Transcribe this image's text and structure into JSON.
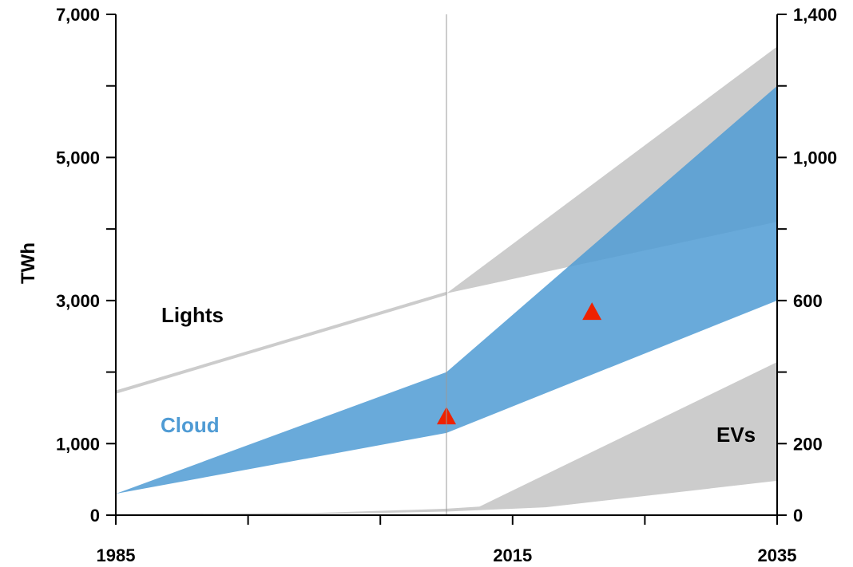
{
  "chart_data": {
    "type": "area",
    "title": "",
    "ylabel": "TWh",
    "y_left": {
      "range": [
        0,
        7000
      ],
      "ticks": [
        0,
        1000,
        2000,
        3000,
        4000,
        5000,
        6000,
        7000
      ],
      "labels": [
        "0",
        "1,000",
        "",
        "3,000",
        "",
        "5,000",
        "",
        "7,000"
      ]
    },
    "y_right": {
      "range": [
        0,
        1400
      ],
      "ticks": [
        0,
        200,
        400,
        600,
        800,
        1000,
        1200,
        1400
      ],
      "labels": [
        "0",
        "200",
        "",
        "600",
        "",
        "1,000",
        "",
        "1,400"
      ]
    },
    "x": {
      "range": [
        1985,
        2035
      ],
      "ticks": [
        1985,
        1995,
        2005,
        2015,
        2025,
        2035
      ],
      "labels": [
        "1985",
        "",
        "",
        "2015",
        "",
        "2035"
      ]
    },
    "reference_line_x": 2010,
    "grid": false,
    "series": [
      {
        "name": "Lights",
        "axis": "left",
        "color": "#cccccc",
        "upper": [
          [
            1985,
            1720
          ],
          [
            2010,
            3100
          ],
          [
            2035,
            6550
          ]
        ],
        "lower": [
          [
            1985,
            1720
          ],
          [
            2010,
            3100
          ],
          [
            2035,
            4100
          ]
        ]
      },
      {
        "name": "Cloud",
        "axis": "left",
        "color": "#4f9bd4",
        "opacity": 0.85,
        "upper": [
          [
            1985,
            300
          ],
          [
            2010,
            2000
          ],
          [
            2035,
            6000
          ]
        ],
        "lower": [
          [
            1985,
            300
          ],
          [
            2010,
            1150
          ],
          [
            2035,
            3000
          ]
        ],
        "markers": [
          [
            2010,
            1370
          ],
          [
            2021,
            2830
          ]
        ],
        "marker_color": "#ee2200"
      },
      {
        "name": "EVs",
        "axis": "right",
        "color": "#cccccc",
        "upper": [
          [
            1985,
            3
          ],
          [
            2000,
            6
          ],
          [
            2010,
            18
          ],
          [
            2012.5,
            24
          ],
          [
            2035,
            428
          ]
        ],
        "lower": [
          [
            1985,
            0
          ],
          [
            2000,
            3
          ],
          [
            2010,
            10
          ],
          [
            2017.5,
            22
          ],
          [
            2035,
            96
          ]
        ]
      }
    ]
  }
}
